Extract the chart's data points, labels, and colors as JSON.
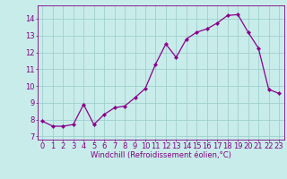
{
  "x": [
    0,
    1,
    2,
    3,
    4,
    5,
    6,
    7,
    8,
    9,
    10,
    11,
    12,
    13,
    14,
    15,
    16,
    17,
    18,
    19,
    20,
    21,
    22,
    23
  ],
  "y": [
    7.9,
    7.6,
    7.6,
    7.7,
    8.9,
    7.7,
    8.3,
    8.7,
    8.8,
    9.3,
    9.85,
    11.3,
    12.5,
    11.7,
    12.8,
    13.2,
    13.4,
    13.75,
    14.2,
    14.25,
    13.2,
    12.25,
    9.8,
    9.55
  ],
  "line_color": "#8b008b",
  "marker": "D",
  "markersize": 2.2,
  "linewidth": 0.9,
  "bg_color": "#c8ecea",
  "grid_color": "#a0d0ce",
  "xlabel": "Windchill (Refroidissement éolien,°C)",
  "xlabel_fontsize": 6.0,
  "xtick_labels": [
    "0",
    "1",
    "2",
    "3",
    "4",
    "5",
    "6",
    "7",
    "8",
    "9",
    "10",
    "11",
    "12",
    "13",
    "14",
    "15",
    "16",
    "17",
    "18",
    "19",
    "20",
    "21",
    "22",
    "23"
  ],
  "ytick_labels": [
    "7",
    "8",
    "9",
    "10",
    "11",
    "12",
    "13",
    "14"
  ],
  "ylim": [
    6.8,
    14.8
  ],
  "xlim": [
    -0.5,
    23.5
  ],
  "tick_color": "#800080",
  "tick_fontsize": 6.0,
  "figsize": [
    3.2,
    2.0
  ],
  "dpi": 100
}
